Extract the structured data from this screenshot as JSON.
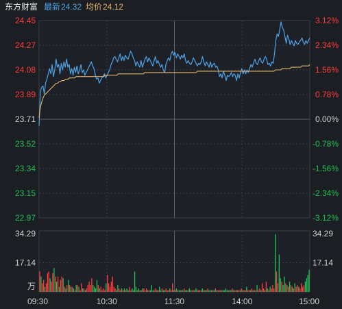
{
  "header": {
    "stock_name": "东方财富",
    "latest_label": "最新",
    "latest_value": "24.32",
    "avg_label": "均价",
    "avg_value": "24.12"
  },
  "colors": {
    "background": "#1b1e23",
    "price_line": "#4fa3e6",
    "avg_line": "#e8b46a",
    "up": "#ff3b3b",
    "down": "#1fbf55",
    "neutral": "#d0d0d0",
    "grid": "#3a3f47"
  },
  "chart_data": [
    {
      "type": "line",
      "series": [
        {
          "name": "最新",
          "color": "#4fa3e6",
          "values": [
            23.66,
            23.92,
            23.95,
            23.96,
            23.9,
            23.98,
            24.01,
            24.05,
            24.09,
            24.05,
            24.12,
            24.03,
            24.08,
            24.16,
            24.1,
            24.12,
            24.05,
            24.13,
            24.08,
            24.14,
            24.1,
            24.16,
            24.1,
            24.12,
            24.05,
            24.09,
            24.04,
            24.1,
            24.06,
            24.11,
            24.05,
            24.08,
            24.12,
            24.06,
            24.08,
            24.04,
            24.06,
            24.08,
            24.1,
            24.12,
            24.14,
            24.11,
            24.09,
            24.04,
            24.01,
            24.02,
            23.98,
            24.0,
            24.02,
            24.03,
            24.05,
            24.02,
            24.04,
            24.06,
            24.08,
            24.12,
            24.14,
            24.17,
            24.18,
            24.16,
            24.14,
            24.17,
            24.2,
            24.15,
            24.18,
            24.15,
            24.19,
            24.17,
            24.16,
            24.19,
            24.22,
            24.2,
            24.17,
            24.15,
            24.11,
            24.14,
            24.12,
            24.1,
            24.15,
            24.1,
            24.13,
            24.16,
            24.18,
            24.14,
            24.17,
            24.15,
            24.13,
            24.11,
            24.15,
            24.18,
            24.13,
            24.15,
            24.12,
            24.1,
            24.12,
            24.08,
            24.06,
            24.12,
            24.15,
            24.17,
            24.15,
            24.2,
            24.22,
            24.19,
            24.21,
            24.17,
            24.2,
            24.18,
            24.16,
            24.19,
            24.17,
            24.2,
            24.15,
            24.13,
            24.15,
            24.13,
            24.12,
            24.14,
            24.17,
            24.15,
            24.13,
            24.11,
            24.13,
            24.12,
            24.14,
            24.18,
            24.14,
            24.11,
            24.14,
            24.12,
            24.1,
            24.14,
            24.1,
            24.12,
            24.13,
            24.1,
            24.11,
            24.08,
            24.03,
            24.05,
            24.02,
            24.07,
            24.04,
            24.0,
            24.04,
            24.03,
            24.04,
            24.06,
            24.03,
            24.05,
            24.04,
            24.0,
            24.05,
            24.02,
            24.06,
            24.09,
            24.05,
            24.08,
            24.05,
            24.08,
            24.06,
            24.09,
            24.12,
            24.1,
            24.13,
            24.16,
            24.13,
            24.12,
            24.15,
            24.17,
            24.14,
            24.13,
            24.16,
            24.18,
            24.16,
            24.12,
            24.13,
            24.11,
            24.14,
            24.13,
            24.2,
            24.3,
            24.35,
            24.33,
            24.38,
            24.44,
            24.4,
            24.38,
            24.33,
            24.28,
            24.34,
            24.31,
            24.27,
            24.3,
            24.28,
            24.26,
            24.3,
            24.28,
            24.27,
            24.29,
            24.3,
            24.32,
            24.29,
            24.27,
            24.3,
            24.28,
            24.3,
            24.32
          ]
        },
        {
          "name": "均价",
          "color": "#e8b46a",
          "values": [
            23.72,
            23.8,
            23.84,
            23.87,
            23.89,
            23.9,
            23.91,
            23.92,
            23.93,
            23.94,
            23.95,
            23.96,
            23.97,
            23.98,
            23.98,
            23.99,
            23.99,
            24.0,
            24.0,
            24.0,
            24.01,
            24.01,
            24.01,
            24.02,
            24.02,
            24.02,
            24.02,
            24.02,
            24.03,
            24.03,
            24.03,
            24.03,
            24.03,
            24.03,
            24.03,
            24.03,
            24.03,
            24.03,
            24.03,
            24.03,
            24.03,
            24.03,
            24.03,
            24.03,
            24.03,
            24.03,
            24.03,
            24.03,
            24.03,
            24.03,
            24.04,
            24.04,
            24.04,
            24.04,
            24.04,
            24.04,
            24.04,
            24.04,
            24.04,
            24.04,
            24.05,
            24.05,
            24.05,
            24.05,
            24.05,
            24.05,
            24.05,
            24.05,
            24.05,
            24.05,
            24.05,
            24.05,
            24.05,
            24.05,
            24.05,
            24.05,
            24.05,
            24.05,
            24.05,
            24.05,
            24.06,
            24.06,
            24.06,
            24.06,
            24.06,
            24.06,
            24.06,
            24.06,
            24.06,
            24.06,
            24.06,
            24.06,
            24.06,
            24.06,
            24.06,
            24.06,
            24.06,
            24.06,
            24.06,
            24.06,
            24.06,
            24.06,
            24.06,
            24.06,
            24.06,
            24.06,
            24.06,
            24.06,
            24.06,
            24.06,
            24.06,
            24.06,
            24.06,
            24.06,
            24.06,
            24.06,
            24.06,
            24.06,
            24.06,
            24.06,
            24.07,
            24.07,
            24.07,
            24.07,
            24.07,
            24.07,
            24.07,
            24.07,
            24.07,
            24.07,
            24.07,
            24.07,
            24.07,
            24.07,
            24.07,
            24.07,
            24.07,
            24.07,
            24.07,
            24.07,
            24.07,
            24.07,
            24.07,
            24.07,
            24.07,
            24.07,
            24.07,
            24.07,
            24.07,
            24.07,
            24.07,
            24.07,
            24.07,
            24.07,
            24.07,
            24.07,
            24.07,
            24.07,
            24.07,
            24.07,
            24.07,
            24.07,
            24.07,
            24.07,
            24.07,
            24.07,
            24.07,
            24.07,
            24.07,
            24.07,
            24.07,
            24.07,
            24.07,
            24.07,
            24.07,
            24.07,
            24.07,
            24.07,
            24.07,
            24.08,
            24.08,
            24.08,
            24.08,
            24.08,
            24.09,
            24.09,
            24.09,
            24.09,
            24.09,
            24.09,
            24.09,
            24.1,
            24.1,
            24.1,
            24.1,
            24.1,
            24.1,
            24.1,
            24.1,
            24.11,
            24.11,
            24.11,
            24.11,
            24.11,
            24.11,
            24.12
          ]
        }
      ],
      "x_ticks": [
        "09:30",
        "10:30",
        "11:30",
        "14:00",
        "15:00"
      ],
      "y_ticks_left": [
        "24.45",
        "24.27",
        "24.08",
        "23.89",
        "23.71",
        "23.52",
        "23.34",
        "23.15",
        "22.97"
      ],
      "y_ticks_right": [
        "3.12%",
        "2.34%",
        "1.56%",
        "0.78%",
        "0.00%",
        "-0.78%",
        "-1.56%",
        "-2.34%",
        "-3.12%"
      ],
      "ylim": [
        22.97,
        24.45
      ],
      "reference_price": 23.71
    },
    {
      "type": "bar",
      "y_ticks": [
        "34.29",
        "17.14"
      ],
      "unit_label": "万",
      "ylim": [
        0,
        34.29
      ],
      "values": [
        12,
        9,
        5,
        7,
        3,
        5,
        11,
        12,
        8,
        6,
        11,
        14,
        9,
        6,
        9,
        3,
        7,
        9,
        8,
        3,
        2,
        4,
        7,
        4,
        3,
        3,
        2,
        1,
        4,
        4,
        3,
        1,
        5,
        2,
        2,
        1,
        2,
        4,
        6,
        4,
        8,
        4,
        3,
        2,
        7,
        4,
        2,
        3,
        1,
        2,
        1,
        5,
        10,
        5,
        3,
        6,
        9,
        3,
        2,
        1,
        4,
        2,
        1,
        2,
        1,
        2,
        1,
        2,
        1,
        3,
        1,
        2,
        1,
        12,
        3,
        1,
        2,
        1,
        1,
        2,
        2,
        1,
        2,
        1,
        1,
        1,
        4,
        1,
        1,
        2,
        1,
        1,
        3,
        1,
        2,
        1,
        1,
        2,
        1,
        1,
        2,
        1,
        5,
        1,
        1,
        2,
        1,
        1,
        1,
        1,
        1,
        2,
        1,
        1,
        1,
        2,
        1,
        1,
        1,
        1,
        2,
        1,
        1,
        1,
        1,
        2,
        1,
        1,
        1,
        2,
        1,
        1,
        1,
        1,
        1,
        2,
        1,
        1,
        1,
        1,
        1,
        1,
        1,
        2,
        1,
        1,
        1,
        1,
        2,
        1,
        1,
        1,
        1,
        1,
        1,
        2,
        1,
        1,
        1,
        3,
        1,
        1,
        1,
        2,
        1,
        1,
        1,
        4,
        1,
        2,
        1,
        5,
        2,
        1,
        6,
        2,
        1,
        3,
        2,
        4,
        2,
        34,
        12,
        5,
        22,
        8,
        6,
        4,
        9,
        5,
        4,
        3,
        6,
        4,
        3,
        2,
        5,
        3,
        4,
        3,
        2,
        5,
        3,
        4,
        6,
        8,
        10,
        13
      ],
      "dirs": [
        1,
        -1,
        1,
        1,
        -1,
        1,
        1,
        1,
        -1,
        1,
        1,
        -1,
        1,
        -1,
        1,
        -1,
        1,
        1,
        -1,
        1,
        -1,
        1,
        -1,
        1,
        -1,
        1,
        -1,
        1,
        -1,
        1,
        -1,
        1,
        1,
        -1,
        1,
        -1,
        1,
        1,
        1,
        1,
        1,
        -1,
        -1,
        -1,
        -1,
        1,
        -1,
        1,
        1,
        1,
        1,
        -1,
        1,
        1,
        1,
        1,
        1,
        1,
        1,
        -1,
        -1,
        1,
        1,
        -1,
        1,
        -1,
        1,
        -1,
        -1,
        1,
        1,
        -1,
        -1,
        -1,
        -1,
        1,
        -1,
        -1,
        1,
        -1,
        1,
        1,
        1,
        -1,
        1,
        -1,
        -1,
        -1,
        1,
        1,
        -1,
        1,
        -1,
        -1,
        1,
        -1,
        -1,
        1,
        1,
        1,
        -1,
        1,
        1,
        -1,
        1,
        -1,
        1,
        -1,
        -1,
        1,
        -1,
        1,
        -1,
        -1,
        1,
        -1,
        -1,
        1,
        1,
        -1,
        -1,
        -1,
        1,
        1,
        1,
        -1,
        -1,
        1,
        -1,
        1,
        -1,
        -1,
        1,
        -1,
        -1,
        1,
        -1,
        1,
        1,
        -1,
        1,
        -1,
        -1,
        -1,
        -1,
        1,
        -1,
        -1,
        1,
        -1,
        1,
        -1,
        1,
        1,
        -1,
        1,
        -1,
        1,
        1,
        -1,
        1,
        1,
        -1,
        1,
        -1,
        1,
        1,
        -1,
        1,
        1,
        -1,
        1,
        1,
        -1,
        1,
        -1,
        1,
        -1,
        1,
        1,
        1,
        -1,
        1,
        1,
        -1,
        -1,
        1,
        -1,
        -1,
        1,
        -1,
        1,
        -1,
        1,
        -1,
        1,
        -1,
        1,
        1,
        -1,
        1,
        1,
        1,
        1
      ]
    }
  ]
}
